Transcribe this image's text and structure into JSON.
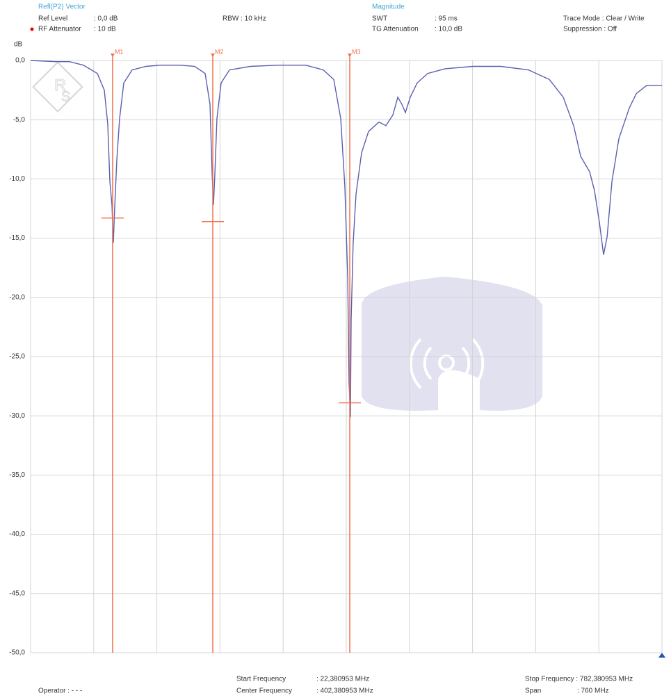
{
  "header": {
    "mode": "Refl(P2) Vector",
    "mode2": "Magnitude",
    "items": [
      {
        "label": "Ref Level",
        "value": ":   0,0 dB"
      },
      {
        "label": "RF Attenuator",
        "value": ": 10   dB"
      },
      {
        "label": "RBW : 10 kHz"
      },
      {
        "label": "SWT",
        "value": ": 95 ms"
      },
      {
        "label": "TG Attenuation",
        "value": ": 10,0 dB"
      },
      {
        "label": "Trace Mode : Clear / Write"
      },
      {
        "label": "Suppression : Off"
      }
    ]
  },
  "footer": {
    "items": [
      {
        "label": "Operator : - - -"
      },
      {
        "label": "Start Frequency",
        "value": ":    22,380953 MHz"
      },
      {
        "label": "Center Frequency",
        "value": ": 402,380953 MHz"
      },
      {
        "label": "Stop Frequency : 782,380953 MHz"
      },
      {
        "label": "Span",
        "value": ": 760            MHz"
      }
    ]
  },
  "chart_data": {
    "type": "line",
    "y_label": "dB",
    "xlim": [
      22.380953,
      782.380953
    ],
    "ylim": [
      -50,
      0
    ],
    "yticks": [
      {
        "value": 0,
        "label": "0,0"
      },
      {
        "value": -5,
        "label": "-5,0"
      },
      {
        "value": -10,
        "label": "-10,0"
      },
      {
        "value": -15,
        "label": "-15,0"
      },
      {
        "value": -20,
        "label": "-20,0"
      },
      {
        "value": -25,
        "label": "-25,0"
      },
      {
        "value": -30,
        "label": "-30,0"
      },
      {
        "value": -35,
        "label": "-35,0"
      },
      {
        "value": -40,
        "label": "-40,0"
      },
      {
        "value": -45,
        "label": "-45,0"
      },
      {
        "value": -50,
        "label": "-50,0"
      }
    ],
    "grid": true,
    "series": [
      {
        "color": "#5b5fb0",
        "x": [
          22.4,
          52.5,
          69.3,
          86.0,
          102.7,
          111.1,
          115.3,
          117.8,
          120.3,
          122.0,
          123.6,
          126.2,
          129.5,
          134.5,
          144.6,
          161.3,
          178.1,
          203.2,
          219.9,
          232.5,
          238.3,
          240.9,
          242.5,
          244.2,
          246.7,
          251.7,
          261.8,
          286.9,
          320.4,
          353.8,
          374.8,
          387.3,
          395.7,
          400.7,
          404.1,
          405.7,
          407.4,
          408.2,
          410.7,
          414.1,
          420.8,
          429.2,
          441.7,
          450.1,
          458.5,
          464.4,
          469.3,
          473.5,
          479.4,
          487.7,
          500.3,
          521.2,
          554.7,
          588.2,
          621.7,
          646.8,
          663.5,
          676.1,
          684.5,
          695.3,
          701.2,
          707.1,
          712.1,
          716.3,
          722.2,
          730.5,
          743.1,
          751.5,
          764.0,
          782.4
        ],
        "values": [
          0,
          -0.1,
          -0.1,
          -0.4,
          -1.1,
          -2.5,
          -5.4,
          -10.2,
          -12.2,
          -15.4,
          -12.5,
          -8.4,
          -4.9,
          -1.9,
          -0.8,
          -0.5,
          -0.4,
          -0.4,
          -0.5,
          -1.1,
          -3.7,
          -9.6,
          -12.2,
          -9.6,
          -4.9,
          -1.9,
          -0.8,
          -0.5,
          -0.4,
          -0.4,
          -0.8,
          -1.6,
          -4.9,
          -10.7,
          -18.4,
          -27.2,
          -30.1,
          -21.9,
          -15.4,
          -11.3,
          -7.8,
          -6.0,
          -5.2,
          -5.5,
          -4.6,
          -3.1,
          -3.7,
          -4.4,
          -3.1,
          -1.9,
          -1.1,
          -0.7,
          -0.5,
          -0.5,
          -0.8,
          -1.6,
          -3.1,
          -5.5,
          -8.1,
          -9.4,
          -11.0,
          -13.7,
          -16.4,
          -14.9,
          -10.2,
          -6.6,
          -4.0,
          -2.8,
          -2.1,
          -2.1
        ]
      }
    ],
    "markers": [
      {
        "name": "M1",
        "x": 121.1,
        "y": -13.3
      },
      {
        "name": "M2",
        "x": 241.7,
        "y": -13.6
      },
      {
        "name": "M3",
        "x": 406.6,
        "y": -28.9
      }
    ],
    "marker_color": "#f0704a"
  }
}
